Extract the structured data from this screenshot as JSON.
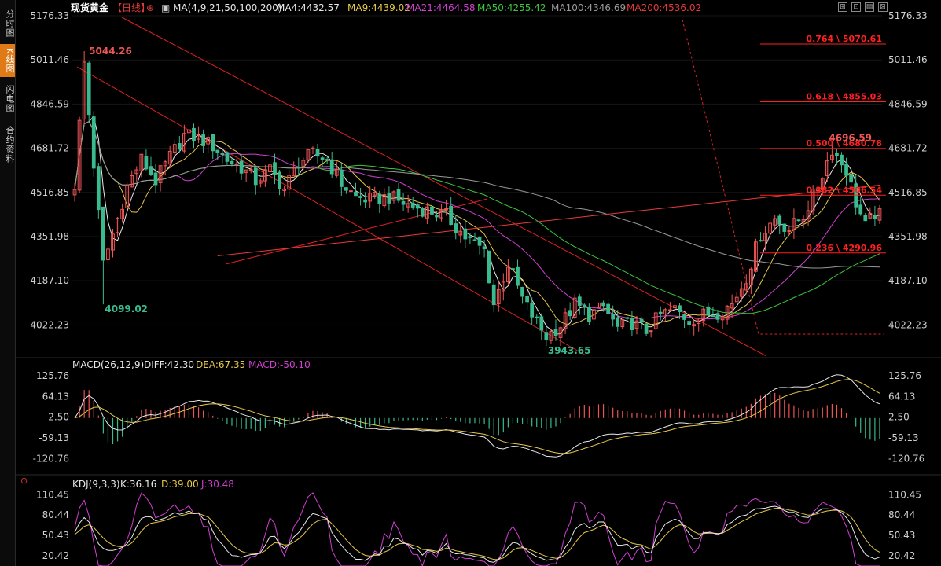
{
  "sidebar": {
    "tabs": [
      {
        "label": "分时图",
        "active": false
      },
      {
        "label": "K线图",
        "active": true
      },
      {
        "label": "闪电图",
        "active": false
      },
      {
        "label": "合约资料",
        "active": false
      }
    ]
  },
  "header": {
    "instrument": "现货黄金",
    "period": "【日线】",
    "ma_label": "MA(4,9,21,50,100,200)",
    "ma_values": [
      {
        "text": "MA4:4432.57",
        "color": "#e8e8e8"
      },
      {
        "text": "MA9:4439.02",
        "color": "#e6c84a"
      },
      {
        "text": "MA21:4464.58",
        "color": "#d040d0"
      },
      {
        "text": "MA50:4255.42",
        "color": "#3cc43c"
      },
      {
        "text": "MA100:4346.69",
        "color": "#9a9a9a"
      },
      {
        "text": "MA200:4536.02",
        "color": "#e83a3a"
      }
    ]
  },
  "macd_header": {
    "label": "MACD(26,12,9)",
    "values": [
      {
        "text": "DIFF:42.30",
        "color": "#e8e8e8"
      },
      {
        "text": "DEA:67.35",
        "color": "#e6c84a"
      },
      {
        "text": "MACD:-50.10",
        "color": "#d040d0"
      }
    ]
  },
  "kdj_header": {
    "label": "KDJ(9,3,3)",
    "values": [
      {
        "text": "K:36.16",
        "color": "#e8e8e8"
      },
      {
        "text": "D:39.00",
        "color": "#e6c84a"
      },
      {
        "text": "J:30.48",
        "color": "#d040d0"
      }
    ]
  },
  "colors": {
    "up": "#ee5555",
    "down": "#3aba8f",
    "fib": "#ff2020",
    "bg": "#000000"
  },
  "chart_data": [
    {
      "type": "candlestick",
      "title": "现货黄金【日线】",
      "y_ticks": [
        5176.33,
        5011.46,
        4846.59,
        4681.72,
        4516.85,
        4351.98,
        4187.1,
        4022.23
      ],
      "ylim": [
        3900,
        5176.33
      ],
      "annotations": [
        {
          "label": "5044.26",
          "value": 5044.26,
          "index": 2
        },
        {
          "label": "4099.02",
          "value": 4099.02,
          "index": 6
        },
        {
          "label": "3943.65",
          "value": 3943.65,
          "index": 99
        },
        {
          "label": "4696.59",
          "value": 4696.59,
          "index": 159
        }
      ],
      "fib_levels": [
        {
          "label": "0.764 \\ 5070.61",
          "value": 5070.61
        },
        {
          "label": "0.618 \\ 4855.03",
          "value": 4855.03
        },
        {
          "label": "0.500 \\ 4680.78",
          "value": 4680.78
        },
        {
          "label": "0.382 \\ 4506.54",
          "value": 4506.54
        },
        {
          "label": "0.236 \\ 4290.96",
          "value": 4290.96
        }
      ],
      "series_ma": [
        "MA4",
        "MA9",
        "MA21",
        "MA50",
        "MA100",
        "MA200"
      ],
      "x_count": 170
    },
    {
      "type": "bar",
      "title": "MACD(26,12,9)",
      "y_ticks": [
        125.76,
        64.13,
        2.5,
        -59.13,
        -120.76
      ],
      "ylim": [
        -160,
        145
      ]
    },
    {
      "type": "line",
      "title": "KDJ(9,3,3)",
      "y_ticks": [
        110.45,
        80.44,
        50.43,
        20.42
      ],
      "ylim": [
        5,
        125
      ]
    }
  ]
}
